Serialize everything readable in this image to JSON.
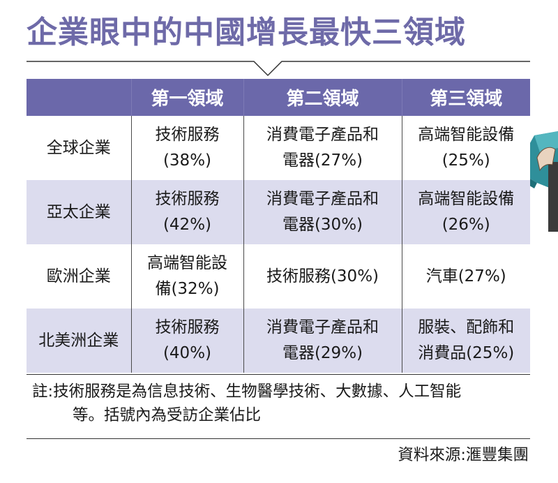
{
  "title": "企業眼中的中國增長最快三領域",
  "table": {
    "headers": [
      "",
      "第一領域",
      "第二領域",
      "第三領域"
    ],
    "rows": [
      {
        "label": "全球企業",
        "cells": [
          [
            "技術服務",
            "(38%)"
          ],
          [
            "消費電子產品和",
            "電器(27%)"
          ],
          [
            "高端智能設備",
            "(25%)"
          ]
        ]
      },
      {
        "label": "亞太企業",
        "cells": [
          [
            "技術服務",
            "(42%)"
          ],
          [
            "消費電子產品和",
            "電器(30%)"
          ],
          [
            "高端智能設備",
            "(26%)"
          ]
        ]
      },
      {
        "label": "歐洲企業",
        "cells": [
          [
            "高端智能設",
            "備(32%)"
          ],
          [
            "技術服務(30%)"
          ],
          [
            "汽車(27%)"
          ]
        ]
      },
      {
        "label": "北美洲企業",
        "cells": [
          [
            "技術服務",
            "(40%)"
          ],
          [
            "消費電子產品和",
            "電器(29%)"
          ],
          [
            "服裝、配飾和",
            "消費品(25%)"
          ]
        ]
      }
    ]
  },
  "note": {
    "line1": "註:技術服務是為信息技術、生物醫學技術、大數據、人工智能",
    "line2": "等。括號內為受訪企業佔比"
  },
  "source": "資料來源:滙豐集團",
  "colors": {
    "header_bg": "#6b68aa",
    "title": "#6e6aa8",
    "row_shade": "#dcdcee"
  }
}
